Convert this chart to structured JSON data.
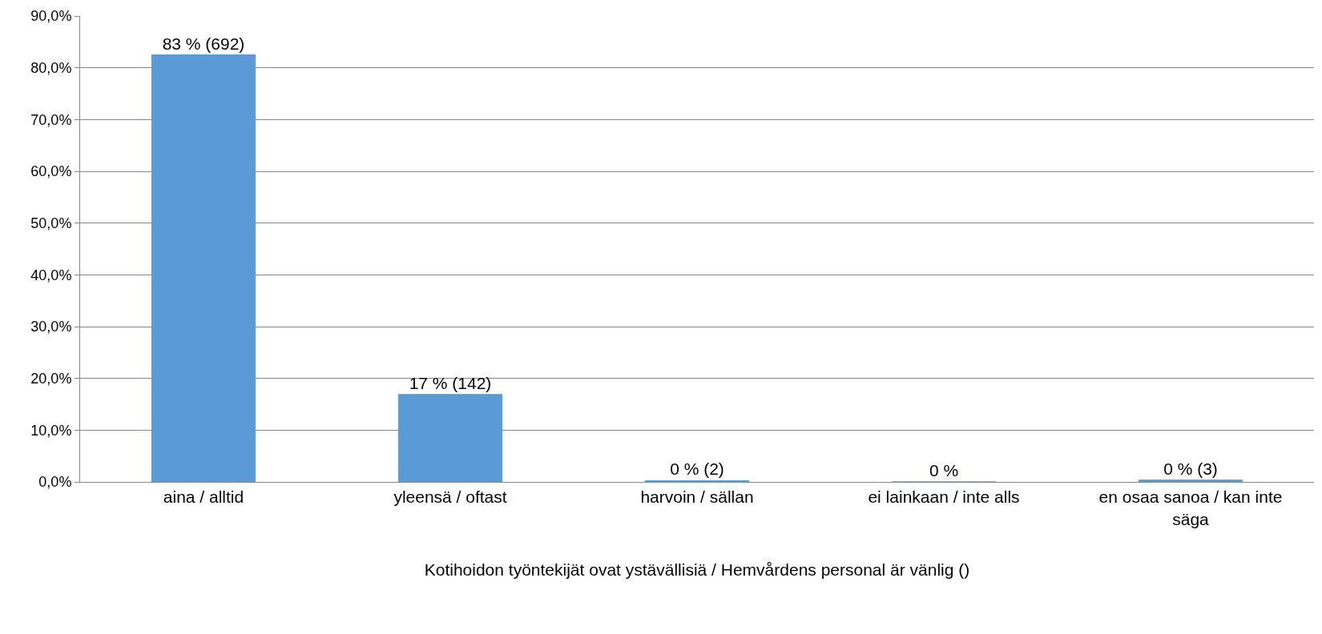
{
  "chart_data": {
    "type": "bar",
    "xlabel": "Kotihoidon työntekijät ovat ystävällisiä / Hemvårdens personal är vänlig ()",
    "categories": [
      "aina / alltid",
      "yleensä / oftast",
      "harvoin / sällan",
      "ei lainkaan / inte alls",
      "en osaa sanoa / kan inte säga"
    ],
    "values": [
      82.5,
      16.9,
      0.24,
      0,
      0.36
    ],
    "value_labels": [
      "83 % (692)",
      "17 % (142)",
      "0 % (2)",
      "0 %",
      "0 % (3)"
    ],
    "color": "#5b9bd5",
    "ylim": [
      0,
      90
    ],
    "yticks": [
      {
        "value": 0,
        "label": "0,0%"
      },
      {
        "value": 10,
        "label": "10,0%"
      },
      {
        "value": 20,
        "label": "20,0%"
      },
      {
        "value": 30,
        "label": "30,0%"
      },
      {
        "value": 40,
        "label": "40,0%"
      },
      {
        "value": 50,
        "label": "50,0%"
      },
      {
        "value": 60,
        "label": "60,0%"
      },
      {
        "value": 70,
        "label": "70,0%"
      },
      {
        "value": 80,
        "label": "80,0%"
      },
      {
        "value": 90,
        "label": "90,0%"
      }
    ],
    "grid": "y",
    "legend": false
  }
}
